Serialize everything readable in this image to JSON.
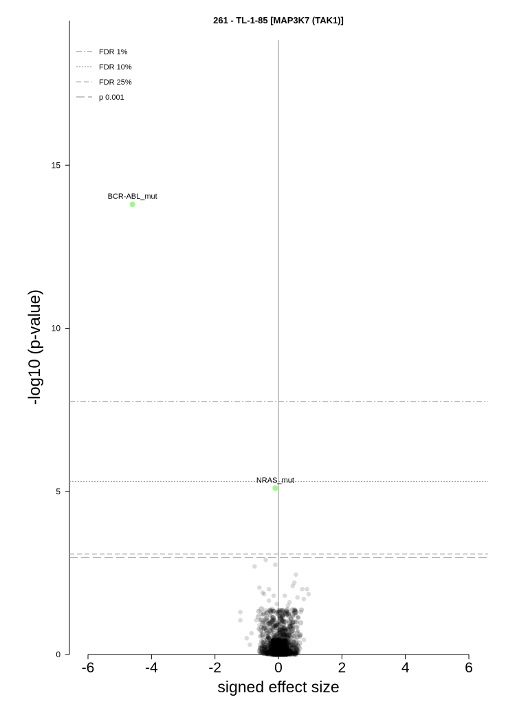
{
  "chart_data": {
    "type": "scatter",
    "title": "261 - TL-1-85 [MAP3K7 (TAK1)]",
    "xlabel": "signed effect size",
    "ylabel": "-log10 (p-value)",
    "xlim": [
      -6.5,
      6.6
    ],
    "ylim": [
      0,
      19.5
    ],
    "x_ticks": [
      -6,
      -4,
      -2,
      0,
      2,
      4,
      6
    ],
    "y_ticks": [
      0,
      5,
      10,
      15
    ],
    "grid": false,
    "legend_position": "top-left",
    "zero_line_color": "#c8c8c8",
    "thresholds": [
      {
        "name": "FDR 1%",
        "y": 7.75,
        "style": "dashdot",
        "color": "#a0a0a0"
      },
      {
        "name": "FDR 10%",
        "y": 5.3,
        "style": "dotted",
        "color": "#a0a0a0"
      },
      {
        "name": "FDR 25%",
        "y": 3.08,
        "style": "dashed",
        "color": "#b4b4b4"
      },
      {
        "name": "p 0.001",
        "y": 2.98,
        "style": "longdash",
        "color": "#a0a0a0"
      }
    ],
    "highlighted_points": [
      {
        "label": "BCR-ABL_mut",
        "x": -4.6,
        "y": 13.8,
        "color": "#9dfa8a"
      },
      {
        "label": "NRAS_mut",
        "x": -0.1,
        "y": 5.1,
        "color": "#9dfa8a"
      }
    ],
    "background_points": {
      "description_color": "#000000",
      "points": [
        [
          -0.4,
          2.9
        ],
        [
          -0.1,
          2.75
        ],
        [
          -0.75,
          2.7
        ],
        [
          0.55,
          2.45
        ],
        [
          0.5,
          2.2
        ],
        [
          0.45,
          2.1
        ],
        [
          0.75,
          2.0
        ],
        [
          0.9,
          2.0
        ],
        [
          0.95,
          1.85
        ],
        [
          -0.6,
          2.05
        ],
        [
          -0.5,
          1.9
        ],
        [
          -0.45,
          1.85
        ],
        [
          -0.3,
          2.0
        ],
        [
          -0.15,
          1.8
        ],
        [
          0.2,
          1.8
        ],
        [
          0.6,
          1.75
        ],
        [
          0.8,
          1.7
        ],
        [
          0.35,
          1.6
        ],
        [
          -0.3,
          1.65
        ],
        [
          -0.05,
          1.55
        ],
        [
          -1.2,
          1.3
        ],
        [
          -1.2,
          1.05
        ],
        [
          -0.55,
          1.25
        ],
        [
          -0.4,
          1.35
        ],
        [
          -0.2,
          1.4
        ],
        [
          0.1,
          1.35
        ],
        [
          0.3,
          1.5
        ],
        [
          0.55,
          1.2
        ],
        [
          0.7,
          1.3
        ],
        [
          -0.7,
          1.05
        ],
        [
          -0.6,
          0.9
        ],
        [
          0.45,
          1.0
        ],
        [
          0.6,
          0.85
        ],
        [
          -0.85,
          0.65
        ],
        [
          -1.0,
          0.5
        ],
        [
          -0.9,
          0.3
        ],
        [
          0.7,
          0.6
        ],
        [
          0.8,
          0.45
        ],
        [
          0.6,
          0.3
        ],
        [
          -0.5,
          0.55
        ],
        [
          -0.45,
          0.35
        ],
        [
          0.35,
          0.6
        ],
        [
          0.15,
          0.9
        ],
        [
          -0.25,
          1.0
        ]
      ]
    }
  }
}
